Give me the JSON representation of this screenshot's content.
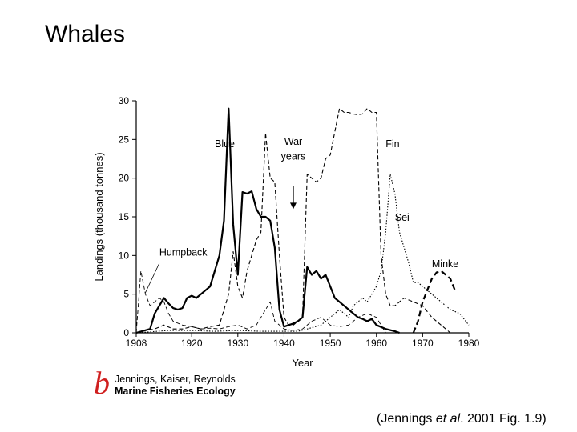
{
  "slide": {
    "title": "Whales"
  },
  "credit": {
    "logo": "b",
    "line1": "Jennings, Kaiser, Reynolds",
    "line2": "Marine Fisheries Ecology"
  },
  "source": {
    "pre": "(Jennings ",
    "italic": "et al",
    "post": ". 2001 Fig. 1.9)"
  },
  "chart_data": {
    "type": "line",
    "title": "",
    "xlabel": "Year",
    "ylabel": "Landings (thousand tonnes)",
    "xlim": [
      1908,
      1980
    ],
    "ylim": [
      0,
      30
    ],
    "xticks": [
      1908,
      1920,
      1930,
      1940,
      1950,
      1960,
      1970,
      1980
    ],
    "yticks": [
      0,
      5,
      10,
      15,
      20,
      25,
      30
    ],
    "grid": false,
    "legend": "none",
    "annotation": {
      "text": [
        "War",
        "years"
      ],
      "year": 1942,
      "arrow_from": 19,
      "arrow_to": 16
    },
    "series": [
      {
        "name": "Blue",
        "style": "solid-thick",
        "label_pos": [
          1925,
          24
        ],
        "x": [
          1908,
          1911,
          1912,
          1913,
          1914,
          1915,
          1916,
          1917,
          1918,
          1919,
          1920,
          1921,
          1922,
          1923,
          1924,
          1925,
          1926,
          1927,
          1928,
          1929,
          1930,
          1931,
          1932,
          1933,
          1934,
          1935,
          1936,
          1937,
          1938,
          1939,
          1940,
          1941,
          1942,
          1943,
          1944,
          1945,
          1946,
          1947,
          1948,
          1949,
          1950,
          1951,
          1952,
          1953,
          1954,
          1955,
          1956,
          1957,
          1958,
          1959,
          1960,
          1962,
          1964,
          1965
        ],
        "y": [
          0,
          0.5,
          2.5,
          3.5,
          4.5,
          3.8,
          3.2,
          3.0,
          3.2,
          4.5,
          4.8,
          4.5,
          5.0,
          5.5,
          6.0,
          8.0,
          10.0,
          14.5,
          29.0,
          14.0,
          7.5,
          18.2,
          18.0,
          18.3,
          16.0,
          15.0,
          15.0,
          14.5,
          11.0,
          3.0,
          0.8,
          1.0,
          1.2,
          1.5,
          2.0,
          8.5,
          7.5,
          8.0,
          7.0,
          7.5,
          6.0,
          4.5,
          4.0,
          3.5,
          3.0,
          2.5,
          2.0,
          1.8,
          1.5,
          1.8,
          1.0,
          0.5,
          0.2,
          0
        ]
      },
      {
        "name": "Fin",
        "style": "dashed",
        "label_pos": [
          1962,
          24
        ],
        "x": [
          1908,
          1910,
          1912,
          1914,
          1916,
          1918,
          1920,
          1922,
          1924,
          1926,
          1928,
          1929,
          1930,
          1931,
          1932,
          1933,
          1934,
          1935,
          1936,
          1937,
          1938,
          1939,
          1940,
          1941,
          1942,
          1943,
          1944,
          1945,
          1946,
          1947,
          1948,
          1949,
          1950,
          1951,
          1952,
          1953,
          1954,
          1955,
          1956,
          1957,
          1958,
          1959,
          1960,
          1961,
          1962,
          1963,
          1964,
          1965,
          1966,
          1968,
          1970,
          1972,
          1974,
          1976
        ],
        "y": [
          0,
          0.3,
          0.5,
          1.0,
          0.5,
          0.5,
          0.8,
          0.5,
          0.8,
          1.0,
          5.0,
          10.5,
          6.0,
          4.5,
          8.0,
          10.0,
          12.0,
          13.0,
          25.8,
          20.0,
          19.5,
          10.0,
          2.0,
          1.0,
          1.0,
          1.5,
          2.0,
          20.5,
          20.0,
          19.5,
          20.0,
          22.5,
          23.0,
          26.0,
          29.0,
          28.5,
          28.5,
          28.3,
          28.2,
          28.3,
          29.0,
          28.5,
          28.5,
          10.0,
          5.0,
          3.5,
          3.5,
          4.0,
          4.5,
          4.0,
          3.5,
          2.0,
          1.0,
          0
        ]
      },
      {
        "name": "Sei",
        "style": "dotted",
        "label_pos": [
          1964,
          14.5
        ],
        "x": [
          1908,
          1915,
          1920,
          1925,
          1930,
          1935,
          1940,
          1943,
          1945,
          1948,
          1950,
          1952,
          1954,
          1955,
          1956,
          1957,
          1958,
          1960,
          1961,
          1962,
          1963,
          1964,
          1965,
          1966,
          1967,
          1968,
          1969,
          1970,
          1972,
          1974,
          1976,
          1978,
          1980
        ],
        "y": [
          0,
          0.3,
          0.3,
          0.2,
          0.3,
          0.2,
          0.2,
          0.2,
          0.5,
          1.0,
          2.0,
          3.0,
          2.0,
          3.5,
          4.0,
          4.5,
          4.0,
          6.0,
          8.0,
          13.0,
          20.5,
          18.0,
          13.0,
          11.0,
          9.0,
          6.5,
          6.5,
          6.0,
          5.0,
          4.0,
          3.0,
          2.5,
          1.0
        ]
      },
      {
        "name": "Humpback",
        "style": "dashed-thin",
        "label_pos": [
          1913,
          10
        ],
        "x": [
          1908,
          1909,
          1910,
          1911,
          1912,
          1913,
          1914,
          1915,
          1916,
          1918,
          1920,
          1922,
          1924,
          1926,
          1928,
          1930,
          1932,
          1934,
          1936,
          1937,
          1938,
          1939,
          1940,
          1942,
          1944,
          1946,
          1948,
          1950,
          1952,
          1954,
          1956,
          1958,
          1960,
          1962
        ],
        "y": [
          0,
          8.0,
          5.0,
          3.5,
          4.0,
          4.5,
          4.0,
          2.5,
          1.5,
          1.0,
          0.8,
          0.5,
          0.6,
          0.5,
          0.8,
          1.0,
          0.5,
          1.0,
          3.0,
          4.0,
          1.5,
          1.0,
          0.5,
          0.3,
          0.5,
          1.5,
          2.0,
          1.0,
          0.8,
          1.0,
          2.0,
          2.5,
          2.0,
          0
        ]
      },
      {
        "name": "Minke",
        "style": "dashed-thick",
        "label_pos": [
          1972,
          8.5
        ],
        "x": [
          1968,
          1969,
          1970,
          1971,
          1972,
          1973,
          1974,
          1975,
          1976,
          1977
        ],
        "y": [
          0,
          1.5,
          4.0,
          5.5,
          7.0,
          7.8,
          8.0,
          7.5,
          7.0,
          5.5
        ]
      }
    ]
  }
}
